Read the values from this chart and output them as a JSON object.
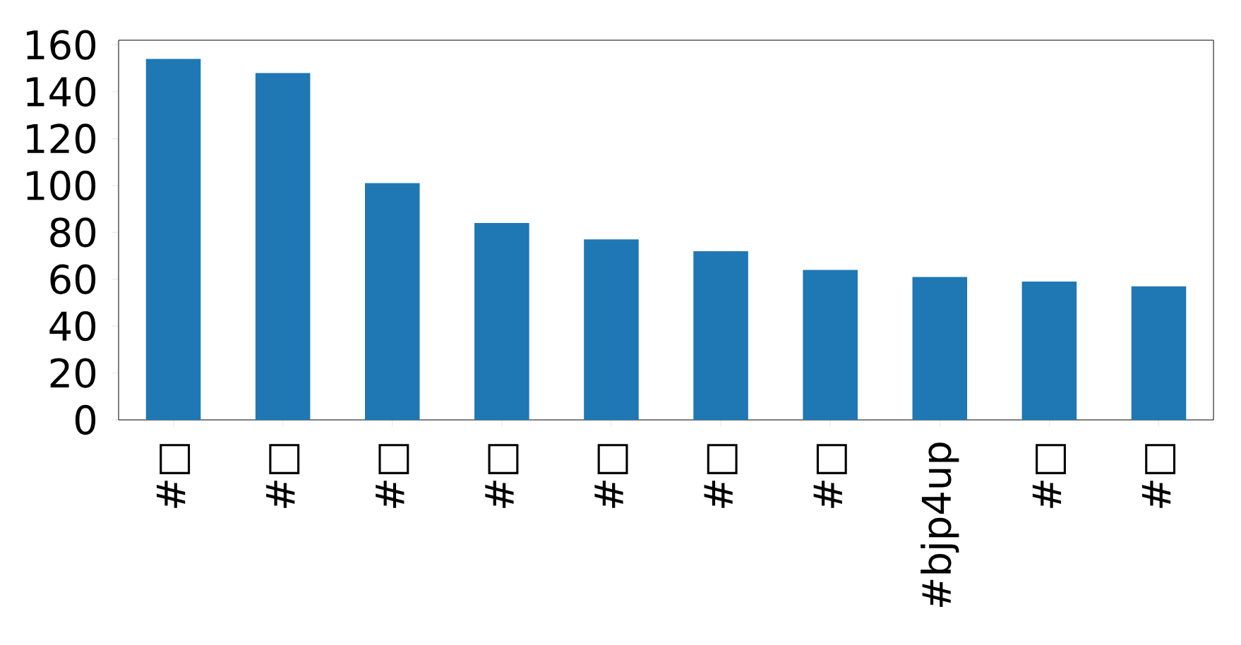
{
  "chart_data": {
    "type": "bar",
    "categories": [
      "#□",
      "#□",
      "#□",
      "#□",
      "#□",
      "#□",
      "#□",
      "#bjp4up",
      "#□",
      "#□"
    ],
    "values": [
      154,
      148,
      101,
      84,
      77,
      72,
      64,
      61,
      59,
      57
    ],
    "color": "#1f77b4",
    "ylim": [
      0,
      162
    ],
    "yticks": [
      0,
      20,
      40,
      60,
      80,
      100,
      120,
      140,
      160
    ]
  }
}
